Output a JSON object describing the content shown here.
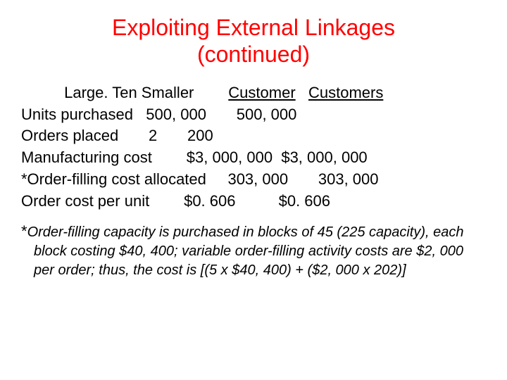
{
  "title_line1": "Exploiting External Linkages",
  "title_line2": "(continued)",
  "header_indent": "          ",
  "header_part1": "Large. Ten Smaller        ",
  "header_customer": "Customer",
  "header_gap": "   ",
  "header_customers": "Customers",
  "rows": {
    "units": "Units purchased   500, 000       500, 000",
    "orders": "Orders placed       2       200",
    "mfg": "Manufacturing cost        $3, 000, 000  $3, 000, 000",
    "orderfill": "*Order-filling cost allocated     303, 000       303, 000",
    "perunit": "Order cost per unit        $0. 606          $0. 606"
  },
  "footnote_star": "*",
  "footnote_text": "Order-filling capacity is purchased in blocks of 45 (225 capacity), each  block costing $40, 400; variable order-filling activity costs are $2, 000 per order; thus, the cost is [(5 x $40, 400) + ($2, 000 x 202)]"
}
